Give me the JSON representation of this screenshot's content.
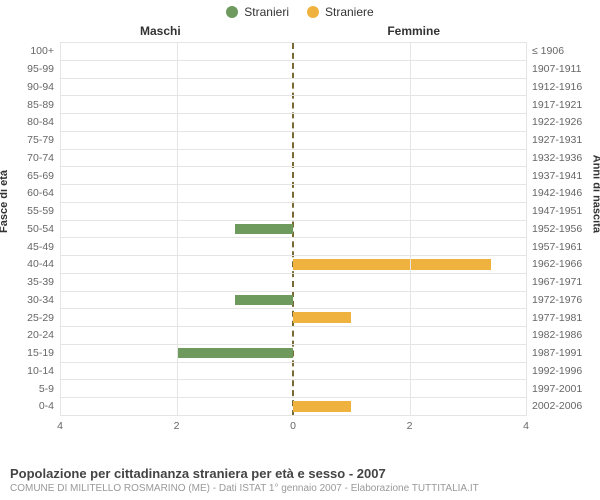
{
  "legend": {
    "stranieri": {
      "label": "Stranieri",
      "color": "#6f9a5e"
    },
    "straniere": {
      "label": "Straniere",
      "color": "#efb23e"
    }
  },
  "headers": {
    "maschi": "Maschi",
    "femmine": "Femmine"
  },
  "axis": {
    "left_title": "Fasce di età",
    "right_title": "Anni di nascita"
  },
  "x": {
    "max": 4,
    "ticks": [
      4,
      2,
      0,
      2,
      4
    ]
  },
  "rows": [
    {
      "age": "100+",
      "birth": "≤ 1906",
      "m": 0,
      "f": 0
    },
    {
      "age": "95-99",
      "birth": "1907-1911",
      "m": 0,
      "f": 0
    },
    {
      "age": "90-94",
      "birth": "1912-1916",
      "m": 0,
      "f": 0
    },
    {
      "age": "85-89",
      "birth": "1917-1921",
      "m": 0,
      "f": 0
    },
    {
      "age": "80-84",
      "birth": "1922-1926",
      "m": 0,
      "f": 0
    },
    {
      "age": "75-79",
      "birth": "1927-1931",
      "m": 0,
      "f": 0
    },
    {
      "age": "70-74",
      "birth": "1932-1936",
      "m": 0,
      "f": 0
    },
    {
      "age": "65-69",
      "birth": "1937-1941",
      "m": 0,
      "f": 0
    },
    {
      "age": "60-64",
      "birth": "1942-1946",
      "m": 0,
      "f": 0
    },
    {
      "age": "55-59",
      "birth": "1947-1951",
      "m": 0,
      "f": 0
    },
    {
      "age": "50-54",
      "birth": "1952-1956",
      "m": 1,
      "f": 0
    },
    {
      "age": "45-49",
      "birth": "1957-1961",
      "m": 0,
      "f": 0
    },
    {
      "age": "40-44",
      "birth": "1962-1966",
      "m": 0,
      "f": 3.4
    },
    {
      "age": "35-39",
      "birth": "1967-1971",
      "m": 0,
      "f": 0
    },
    {
      "age": "30-34",
      "birth": "1972-1976",
      "m": 1,
      "f": 0
    },
    {
      "age": "25-29",
      "birth": "1977-1981",
      "m": 0,
      "f": 1
    },
    {
      "age": "20-24",
      "birth": "1982-1986",
      "m": 0,
      "f": 0
    },
    {
      "age": "15-19",
      "birth": "1987-1991",
      "m": 2,
      "f": 0
    },
    {
      "age": "10-14",
      "birth": "1992-1996",
      "m": 0,
      "f": 0
    },
    {
      "age": "5-9",
      "birth": "1997-2001",
      "m": 0,
      "f": 0
    },
    {
      "age": "0-4",
      "birth": "2002-2006",
      "m": 0,
      "f": 1
    }
  ],
  "colors": {
    "grid": "#e5e5e5",
    "center_line": "#7a6a36",
    "text": "#333",
    "text_muted": "#666",
    "text_light": "#999",
    "background": "#ffffff"
  },
  "typography": {
    "legend_fontsize": 12,
    "header_fontsize": 12,
    "axis_title_fontsize": 11,
    "row_label_fontsize": 10.5,
    "tick_fontsize": 10.5,
    "footer_title_fontsize": 13,
    "footer_sub_fontsize": 10
  },
  "footer": {
    "title": "Popolazione per cittadinanza straniera per età e sesso - 2007",
    "subtitle": "COMUNE DI MILITELLO ROSMARINO (ME) - Dati ISTAT 1° gennaio 2007 - Elaborazione TUTTITALIA.IT"
  }
}
